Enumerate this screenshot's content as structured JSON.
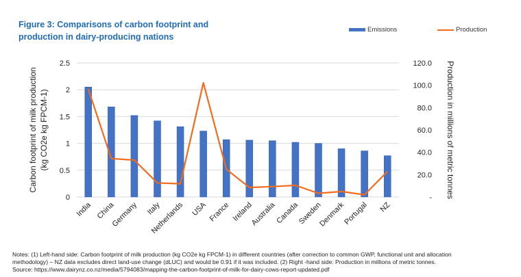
{
  "title": "Figure 3:  Comparisons of carbon footprint and production in dairy-producing nations",
  "notes": [
    "Notes: (1) Left-hand side: Carbon footprint of milk production (kg CO2e kg FPCM-1) in different countries (after correction to common GWP, functional unit and allocation",
    "methodology) – NZ data excludes direct land-use change (dLUC) and would be 0.91 if it was included. (2) Right -hand side: Production in millions of metric tonnes.",
    "Source: https://www.dairynz.co.nz/media/5794083/mapping-the-carbon-footprint-of-milk-for-dairy-cows-report-updated.pdf"
  ],
  "chart_data": {
    "type": "bar",
    "categories": [
      "India",
      "China",
      "Germany",
      "Italy",
      "Netherlands",
      "USA",
      "France",
      "Ireland",
      "Australia",
      "Canada",
      "Sweden",
      "Denmark",
      "Portugal",
      "NZ"
    ],
    "series": [
      {
        "name": "Emissions",
        "type": "bar",
        "axis": "left",
        "color": "#4472c4",
        "values": [
          2.05,
          1.68,
          1.52,
          1.42,
          1.31,
          1.23,
          1.07,
          1.06,
          1.05,
          1.02,
          1.0,
          0.9,
          0.86,
          0.77
        ]
      },
      {
        "name": "Production",
        "type": "line",
        "axis": "right",
        "color": "#f26b1d",
        "values": [
          96.6,
          34.4,
          33.0,
          12.6,
          11.8,
          102.2,
          24.8,
          8.5,
          9.3,
          10.4,
          3.3,
          4.9,
          2.0,
          22.8
        ]
      }
    ],
    "ylabel": "Carbon footprint of milk production (kg CO2e kg FPCM-1)",
    "ylabel_lines": [
      "Carbon footprint of milk production",
      "(kg CO2e kg FPCM-1)"
    ],
    "y2label": "Production in millions of metric tonnes",
    "ylim": [
      0,
      2.5
    ],
    "y2lim": [
      0,
      120
    ],
    "yticks": [
      "0",
      "0.5",
      "1",
      "1.5",
      "2",
      "2.5"
    ],
    "y2ticks": [
      "-",
      "20.0",
      "40.0",
      "60.0",
      "80.0",
      "100.0",
      "120.0"
    ],
    "grid": true,
    "legend": "top-right"
  }
}
